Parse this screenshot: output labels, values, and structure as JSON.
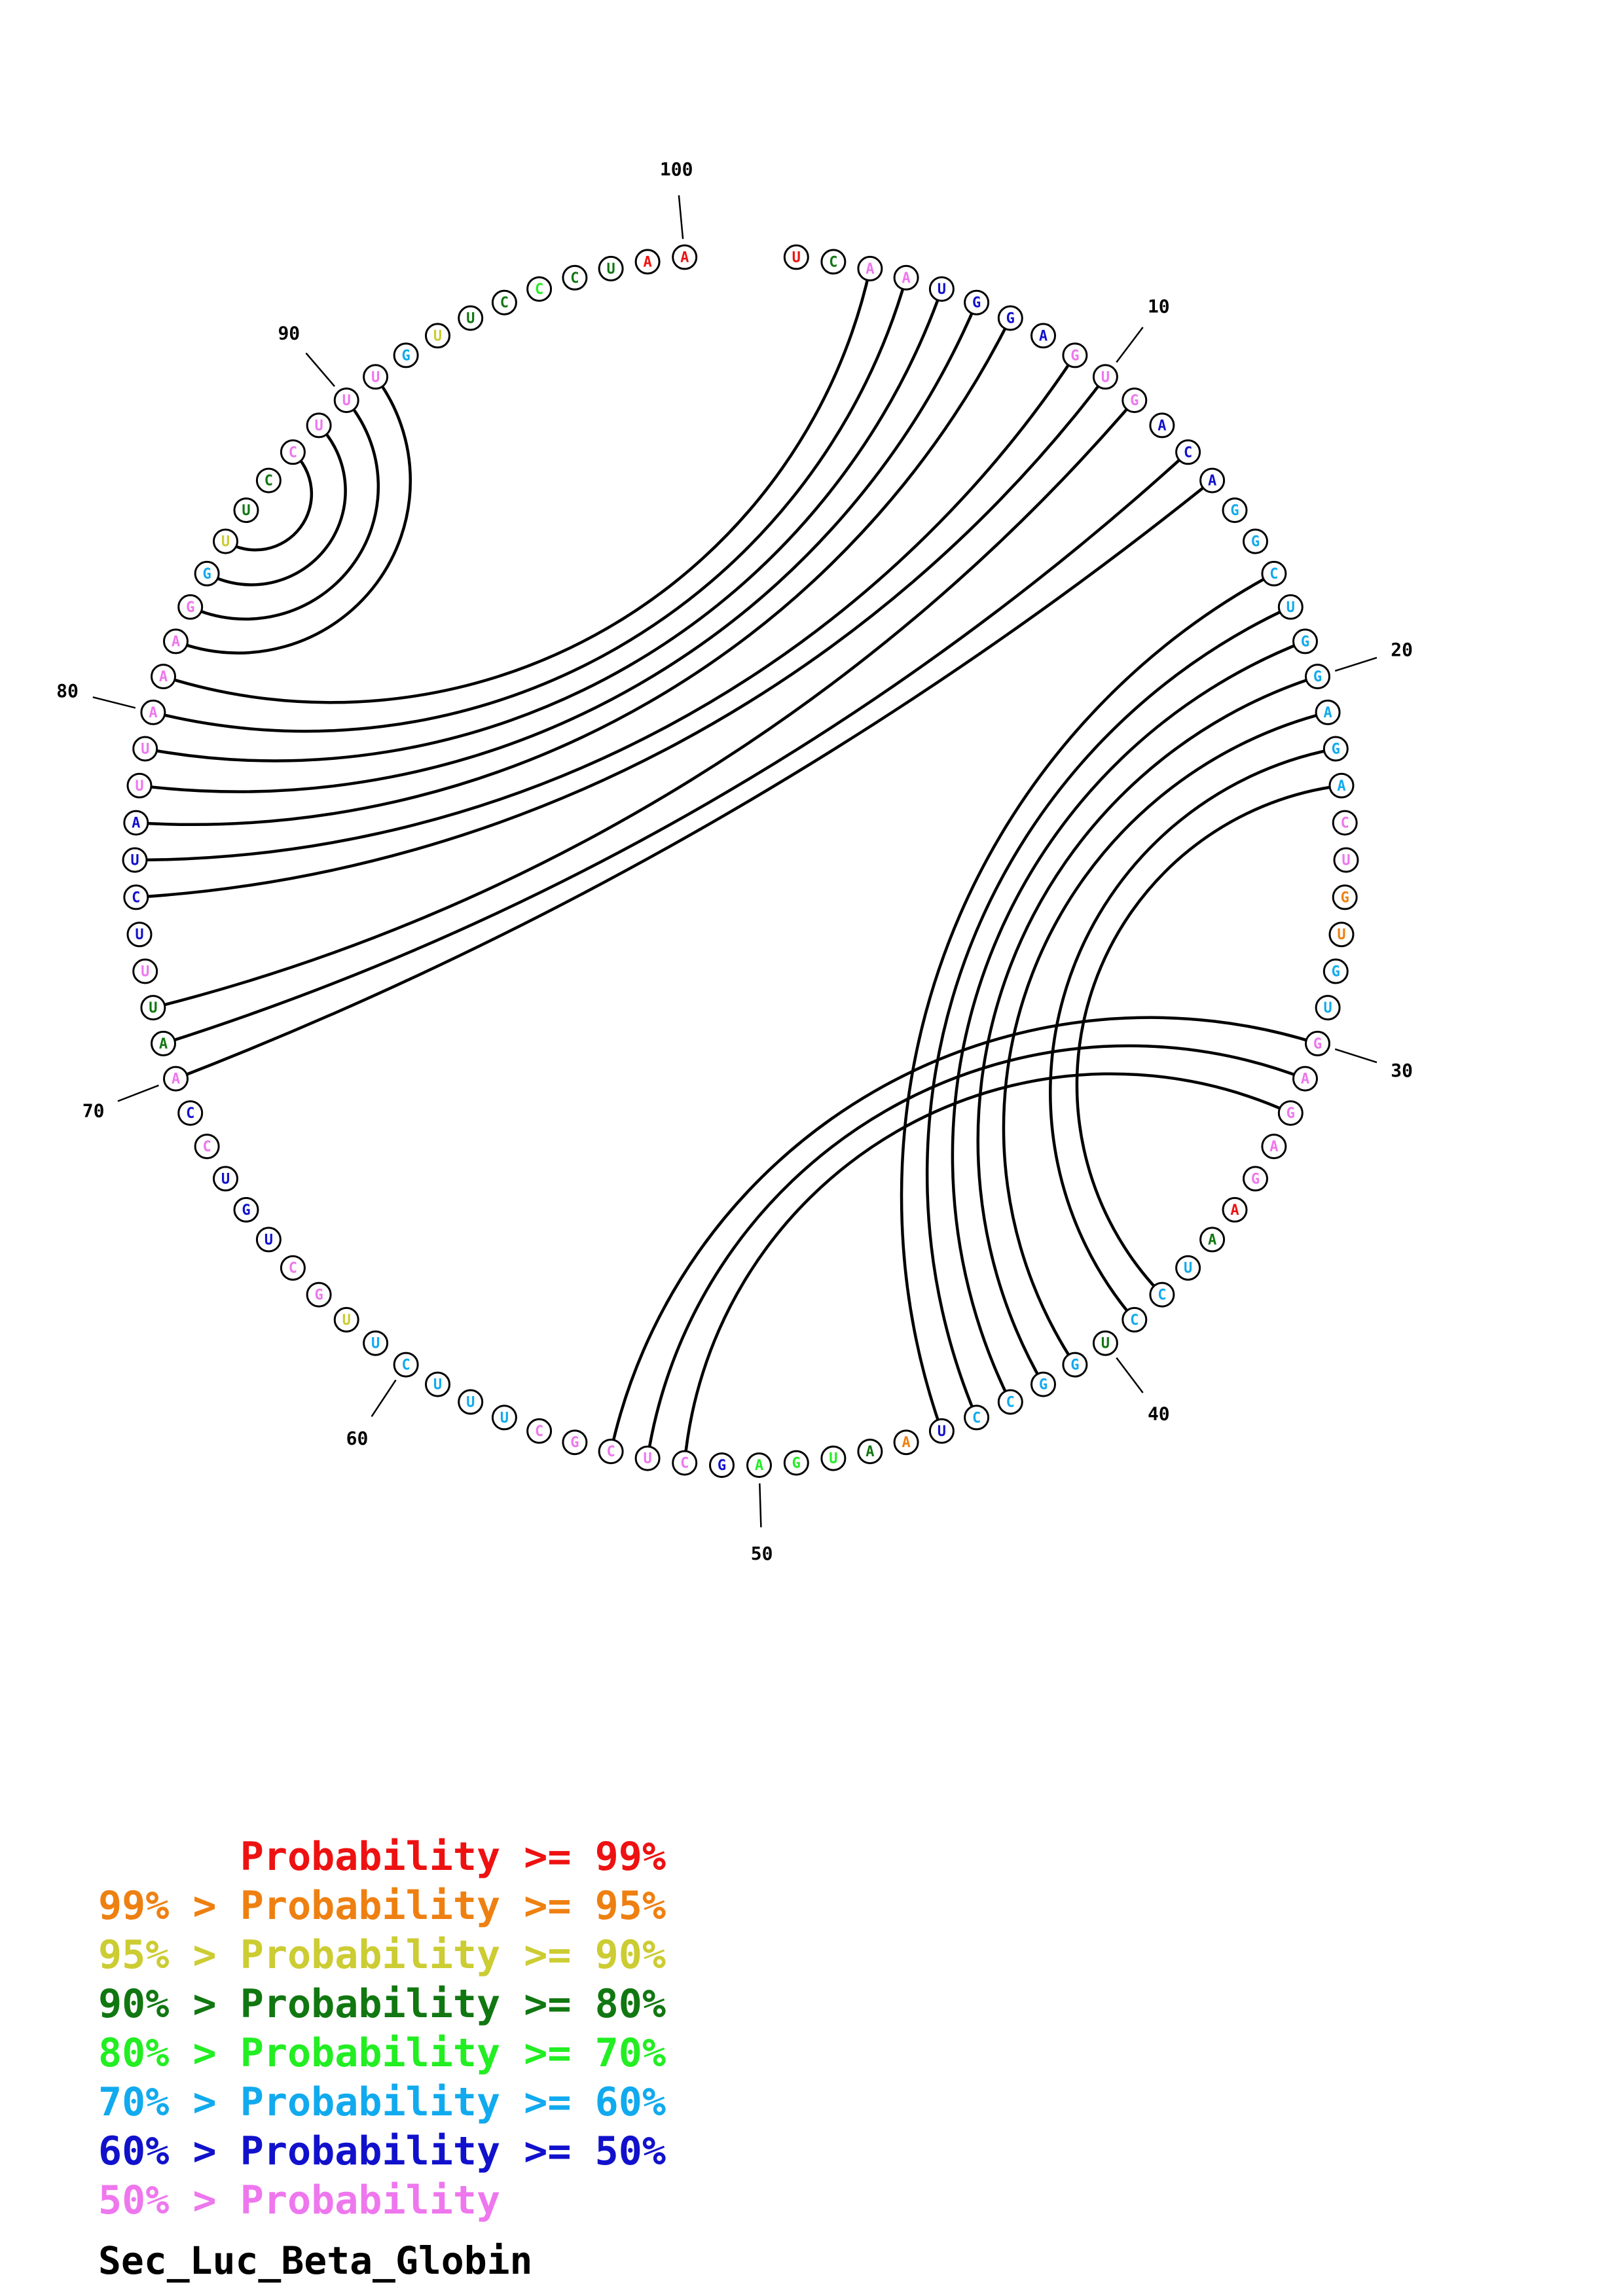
{
  "title": "Sec_Luc_Beta_Globin",
  "colors": {
    "p99": "#ee1111",
    "p95": "#ee8011",
    "p90": "#cccc33",
    "p80": "#117711",
    "p70": "#22ee22",
    "p60": "#11aaee",
    "p50": "#1111cc",
    "plt50": "#ee77ee"
  },
  "legend": [
    {
      "text": "      Probability >= 99%",
      "color_key": "p99"
    },
    {
      "text": "99% > Probability >= 95%",
      "color_key": "p95"
    },
    {
      "text": "95% > Probability >= 90%",
      "color_key": "p90"
    },
    {
      "text": "90% > Probability >= 80%",
      "color_key": "p80"
    },
    {
      "text": "80% > Probability >= 70%",
      "color_key": "p70"
    },
    {
      "text": "70% > Probability >= 60%",
      "color_key": "p60"
    },
    {
      "text": "60% > Probability >= 50%",
      "color_key": "p50"
    },
    {
      "text": "50% > Probability",
      "color_key": "plt50"
    }
  ],
  "sequence": [
    {
      "base": "U",
      "color_key": "p99"
    },
    {
      "base": "C",
      "color_key": "p80"
    },
    {
      "base": "A",
      "color_key": "plt50"
    },
    {
      "base": "A",
      "color_key": "plt50"
    },
    {
      "base": "U",
      "color_key": "p50"
    },
    {
      "base": "G",
      "color_key": "p50"
    },
    {
      "base": "G",
      "color_key": "p50"
    },
    {
      "base": "A",
      "color_key": "p50"
    },
    {
      "base": "G",
      "color_key": "plt50"
    },
    {
      "base": "U",
      "color_key": "plt50"
    },
    {
      "base": "G",
      "color_key": "plt50"
    },
    {
      "base": "A",
      "color_key": "p50"
    },
    {
      "base": "C",
      "color_key": "p50"
    },
    {
      "base": "A",
      "color_key": "p50"
    },
    {
      "base": "G",
      "color_key": "p60"
    },
    {
      "base": "G",
      "color_key": "p60"
    },
    {
      "base": "C",
      "color_key": "p60"
    },
    {
      "base": "U",
      "color_key": "p60"
    },
    {
      "base": "G",
      "color_key": "p60"
    },
    {
      "base": "G",
      "color_key": "p60"
    },
    {
      "base": "A",
      "color_key": "p60"
    },
    {
      "base": "G",
      "color_key": "p60"
    },
    {
      "base": "A",
      "color_key": "p60"
    },
    {
      "base": "C",
      "color_key": "plt50"
    },
    {
      "base": "U",
      "color_key": "plt50"
    },
    {
      "base": "G",
      "color_key": "p95"
    },
    {
      "base": "U",
      "color_key": "p95"
    },
    {
      "base": "G",
      "color_key": "p60"
    },
    {
      "base": "U",
      "color_key": "p60"
    },
    {
      "base": "G",
      "color_key": "plt50"
    },
    {
      "base": "A",
      "color_key": "plt50"
    },
    {
      "base": "G",
      "color_key": "plt50"
    },
    {
      "base": "A",
      "color_key": "plt50"
    },
    {
      "base": "G",
      "color_key": "plt50"
    },
    {
      "base": "A",
      "color_key": "p99"
    },
    {
      "base": "A",
      "color_key": "p80"
    },
    {
      "base": "U",
      "color_key": "p60"
    },
    {
      "base": "C",
      "color_key": "p60"
    },
    {
      "base": "C",
      "color_key": "p60"
    },
    {
      "base": "U",
      "color_key": "p80"
    },
    {
      "base": "G",
      "color_key": "p60"
    },
    {
      "base": "G",
      "color_key": "p60"
    },
    {
      "base": "C",
      "color_key": "p60"
    },
    {
      "base": "C",
      "color_key": "p60"
    },
    {
      "base": "U",
      "color_key": "p50"
    },
    {
      "base": "A",
      "color_key": "p95"
    },
    {
      "base": "A",
      "color_key": "p80"
    },
    {
      "base": "U",
      "color_key": "p70"
    },
    {
      "base": "G",
      "color_key": "p70"
    },
    {
      "base": "A",
      "color_key": "p70"
    },
    {
      "base": "G",
      "color_key": "p50"
    },
    {
      "base": "C",
      "color_key": "plt50"
    },
    {
      "base": "U",
      "color_key": "plt50"
    },
    {
      "base": "C",
      "color_key": "plt50"
    },
    {
      "base": "G",
      "color_key": "plt50"
    },
    {
      "base": "C",
      "color_key": "plt50"
    },
    {
      "base": "U",
      "color_key": "p60"
    },
    {
      "base": "U",
      "color_key": "p60"
    },
    {
      "base": "U",
      "color_key": "p60"
    },
    {
      "base": "C",
      "color_key": "p60"
    },
    {
      "base": "U",
      "color_key": "p60"
    },
    {
      "base": "U",
      "color_key": "p90"
    },
    {
      "base": "G",
      "color_key": "plt50"
    },
    {
      "base": "C",
      "color_key": "plt50"
    },
    {
      "base": "U",
      "color_key": "p50"
    },
    {
      "base": "G",
      "color_key": "p50"
    },
    {
      "base": "U",
      "color_key": "p50"
    },
    {
      "base": "C",
      "color_key": "plt50"
    },
    {
      "base": "C",
      "color_key": "p50"
    },
    {
      "base": "A",
      "color_key": "plt50"
    },
    {
      "base": "A",
      "color_key": "p80"
    },
    {
      "base": "U",
      "color_key": "p80"
    },
    {
      "base": "U",
      "color_key": "plt50"
    },
    {
      "base": "U",
      "color_key": "p50"
    },
    {
      "base": "C",
      "color_key": "p50"
    },
    {
      "base": "U",
      "color_key": "p50"
    },
    {
      "base": "A",
      "color_key": "p50"
    },
    {
      "base": "U",
      "color_key": "plt50"
    },
    {
      "base": "U",
      "color_key": "plt50"
    },
    {
      "base": "A",
      "color_key": "plt50"
    },
    {
      "base": "A",
      "color_key": "plt50"
    },
    {
      "base": "A",
      "color_key": "plt50"
    },
    {
      "base": "G",
      "color_key": "plt50"
    },
    {
      "base": "G",
      "color_key": "p60"
    },
    {
      "base": "U",
      "color_key": "p90"
    },
    {
      "base": "U",
      "color_key": "p80"
    },
    {
      "base": "C",
      "color_key": "p80"
    },
    {
      "base": "C",
      "color_key": "plt50"
    },
    {
      "base": "U",
      "color_key": "plt50"
    },
    {
      "base": "U",
      "color_key": "plt50"
    },
    {
      "base": "U",
      "color_key": "plt50"
    },
    {
      "base": "G",
      "color_key": "p60"
    },
    {
      "base": "U",
      "color_key": "p90"
    },
    {
      "base": "U",
      "color_key": "p80"
    },
    {
      "base": "C",
      "color_key": "p80"
    },
    {
      "base": "C",
      "color_key": "p70"
    },
    {
      "base": "C",
      "color_key": "p80"
    },
    {
      "base": "U",
      "color_key": "p80"
    },
    {
      "base": "A",
      "color_key": "p99"
    },
    {
      "base": "A",
      "color_key": "p99"
    }
  ],
  "tick_labels": [
    {
      "index": 10,
      "label": "10"
    },
    {
      "index": 20,
      "label": "20"
    },
    {
      "index": 30,
      "label": "30"
    },
    {
      "index": 40,
      "label": "40"
    },
    {
      "index": 50,
      "label": "50"
    },
    {
      "index": 60,
      "label": "60"
    },
    {
      "index": 70,
      "label": "70"
    },
    {
      "index": 80,
      "label": "80"
    },
    {
      "index": 90,
      "label": "90"
    },
    {
      "index": 100,
      "label": "100"
    }
  ],
  "pairs": [
    [
      3,
      81
    ],
    [
      4,
      80
    ],
    [
      5,
      79
    ],
    [
      6,
      78
    ],
    [
      7,
      77
    ],
    [
      9,
      76
    ],
    [
      10,
      75
    ],
    [
      11,
      72
    ],
    [
      13,
      71
    ],
    [
      14,
      70
    ],
    [
      17,
      45
    ],
    [
      18,
      44
    ],
    [
      19,
      43
    ],
    [
      20,
      42
    ],
    [
      21,
      41
    ],
    [
      22,
      39
    ],
    [
      23,
      38
    ],
    [
      30,
      54
    ],
    [
      31,
      53
    ],
    [
      32,
      52
    ],
    [
      82,
      91
    ],
    [
      83,
      90
    ],
    [
      84,
      89
    ],
    [
      85,
      88
    ]
  ]
}
